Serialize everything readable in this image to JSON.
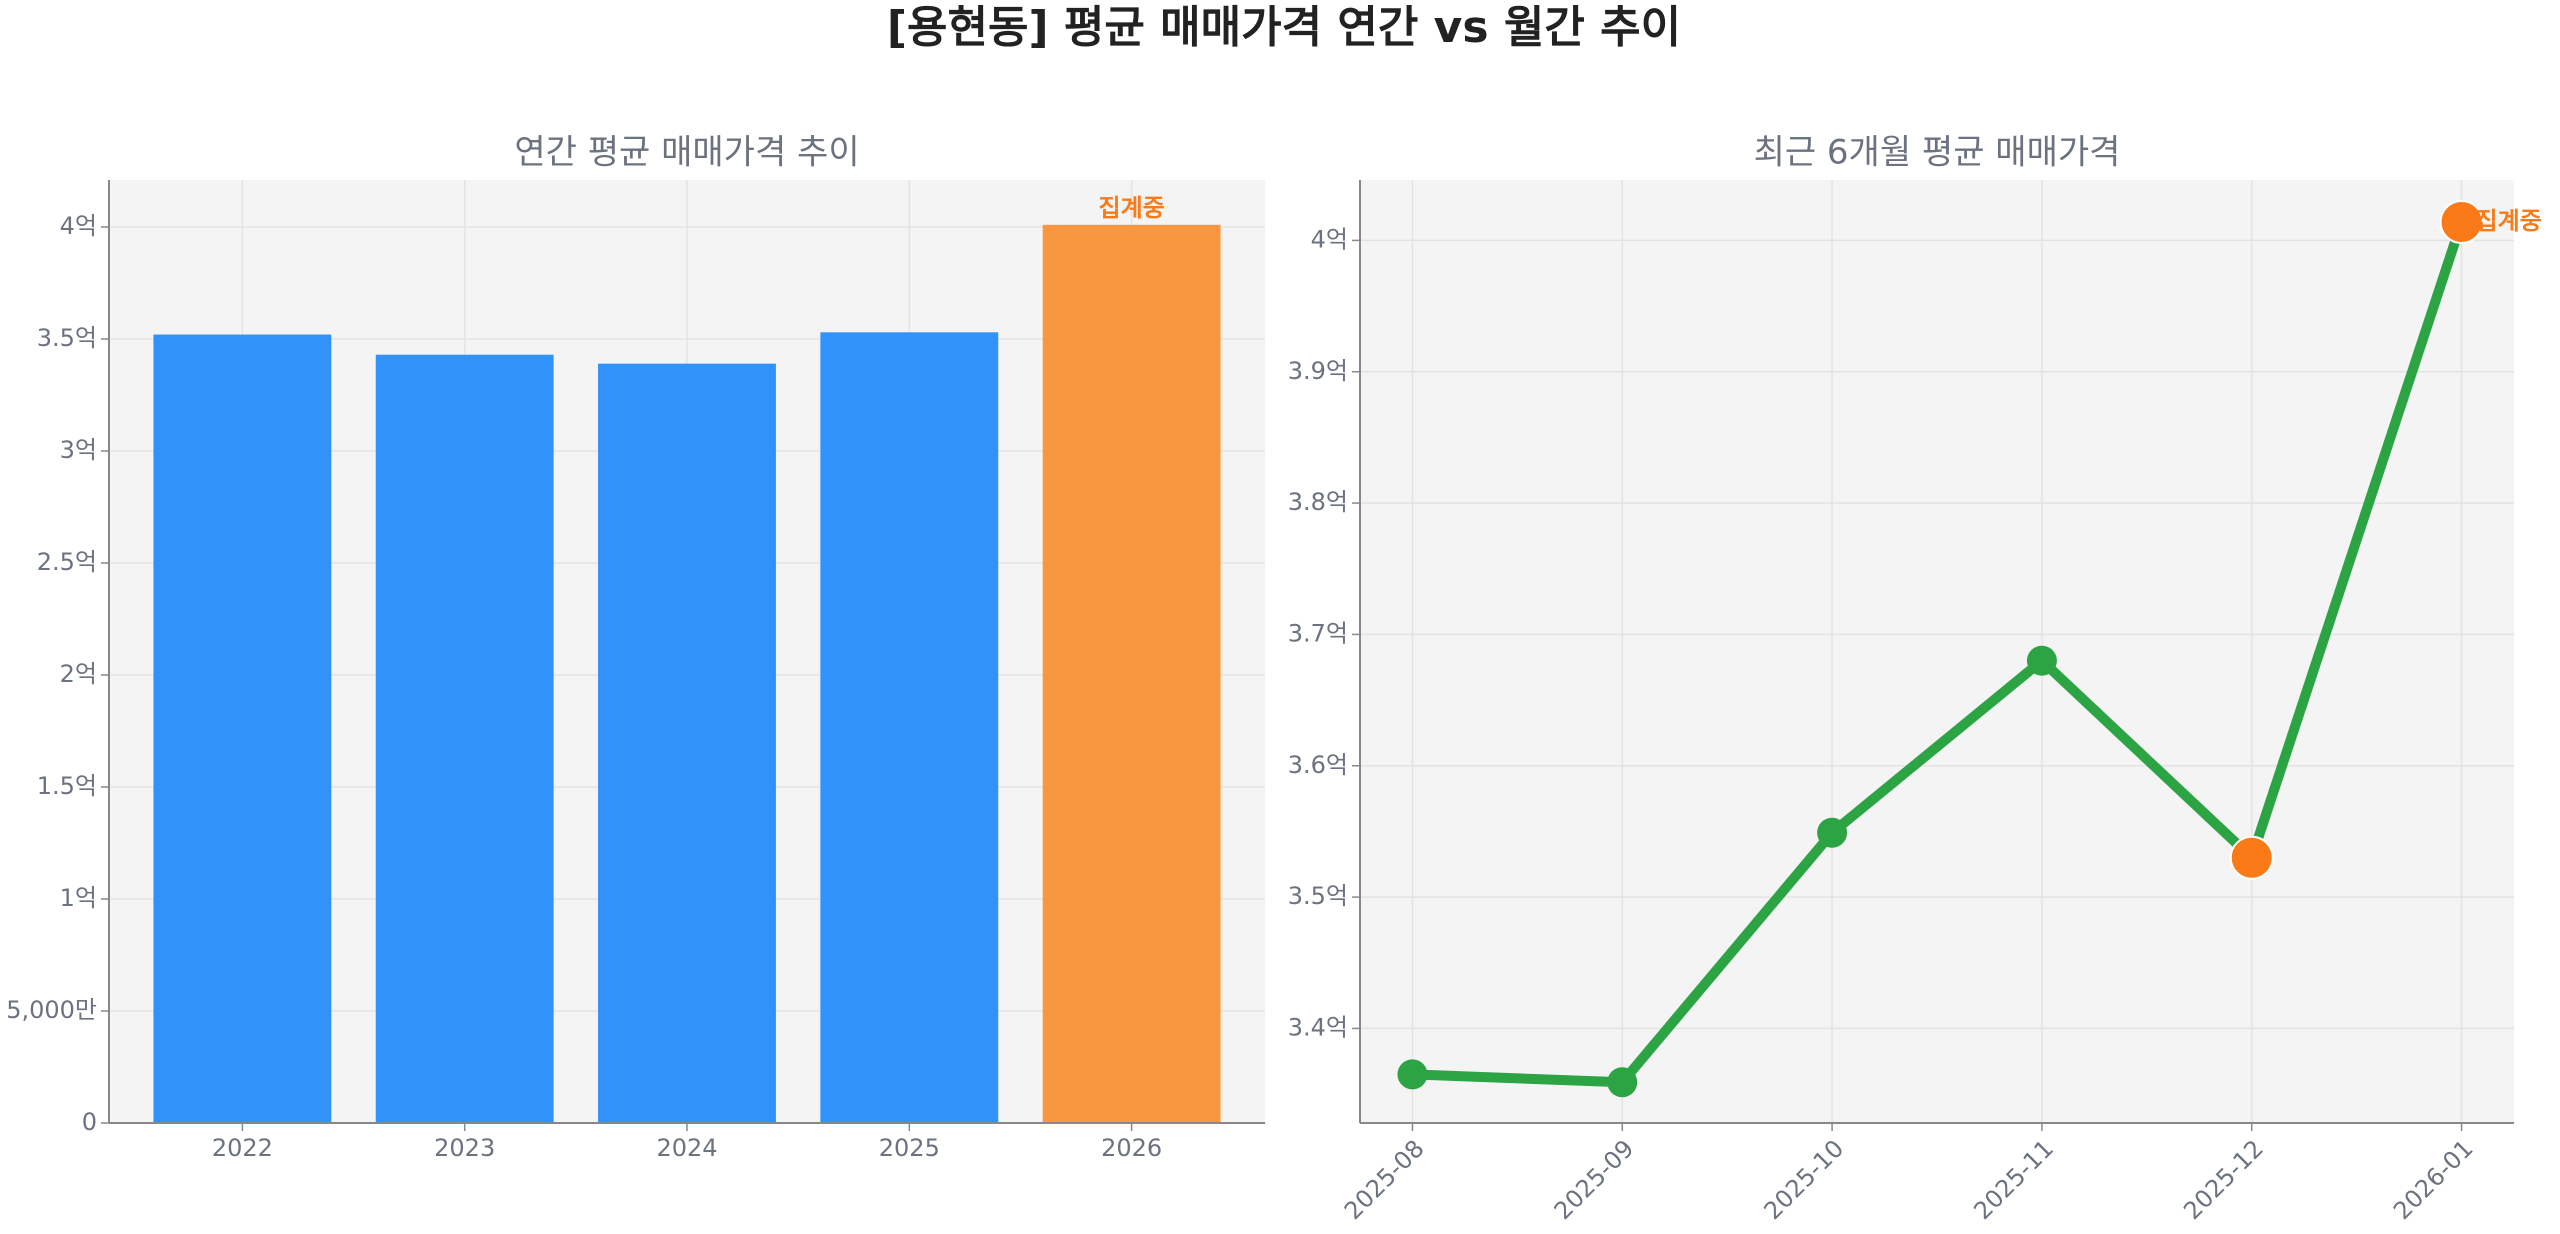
{
  "title": "[용현동] 평균 매매가격 연간 vs 월간 추이",
  "chart_data": [
    {
      "type": "bar",
      "title": "연간 평균 매매가격 추이",
      "categories": [
        "2022",
        "2023",
        "2024",
        "2025",
        "2026"
      ],
      "values": [
        3.52,
        3.43,
        3.39,
        3.53,
        4.01
      ],
      "colors": [
        "#3192fa",
        "#3192fa",
        "#3192fa",
        "#3192fa",
        "#f99740"
      ],
      "annotation": "집계중",
      "annotation_color": "#f97a16",
      "ylim": [
        0,
        4.21
      ],
      "yticks": [
        0,
        {
          "value": 0.5,
          "label": "5,000만"
        },
        {
          "value": 1,
          "label": "1억"
        },
        {
          "value": 1.5,
          "label": "1.5억"
        },
        {
          "value": 2,
          "label": "2억"
        },
        {
          "value": 2.5,
          "label": "2.5억"
        },
        {
          "value": 3,
          "label": "3억"
        },
        {
          "value": 3.5,
          "label": "3.5억"
        },
        {
          "value": 4,
          "label": "4억"
        }
      ],
      "grid": true
    },
    {
      "type": "line",
      "title": "최근 6개월 평균 매매가격",
      "categories": [
        "2025-08",
        "2025-09",
        "2025-10",
        "2025-11",
        "2025-12",
        "2026-01"
      ],
      "values": [
        3.365,
        3.359,
        3.549,
        3.68,
        3.53,
        4.014
      ],
      "color": "#2ca444",
      "point_colors": [
        "#2ca444",
        "#2ca444",
        "#2ca444",
        "#2ca444",
        "#f97a16",
        "#f97a16"
      ],
      "annotation": "집계중",
      "annotation_color": "#f97a16",
      "ylim": [
        3.328,
        4.046
      ],
      "yticks": [
        {
          "value": 3.4,
          "label": "3.4억"
        },
        {
          "value": 3.5,
          "label": "3.5억"
        },
        {
          "value": 3.6,
          "label": "3.6억"
        },
        {
          "value": 3.7,
          "label": "3.7억"
        },
        {
          "value": 3.8,
          "label": "3.8억"
        },
        {
          "value": 3.9,
          "label": "3.9억"
        },
        {
          "value": 4,
          "label": "4억"
        }
      ],
      "grid": true
    }
  ]
}
